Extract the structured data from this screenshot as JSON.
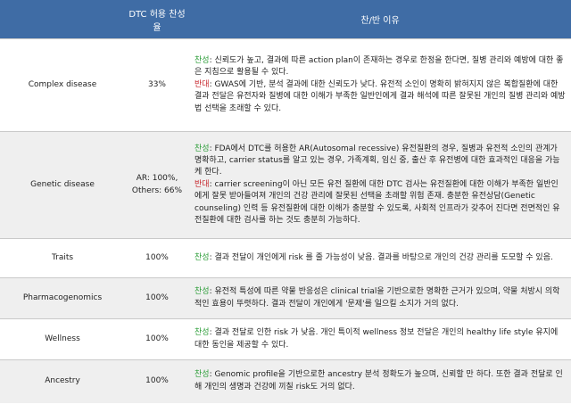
{
  "header": {
    "col1": "",
    "col2": "DTC 허용 찬성율",
    "col3": "찬/반 이유"
  },
  "rows": [
    {
      "name": "Complex disease",
      "rate": "33%",
      "pro_label": "찬성",
      "pro_text": ": 신뢰도가 높고, 결과에 따른 action plan이 존재하는 경우로 한정을 한다면, 질병 관리와 예방에 대한 좋은 지침으로 활용될 수 있다.",
      "con_label": "반대",
      "con_text": ": GWAS에 기반, 분석 결과에 대한 신뢰도가 낮다. 유전적 소인이 명확히 밝혀지지 않은 복합질환에 대한 결과 전달은 유전자와 질병에 대한 이해가 부족한 일반인에게 결과 해석에 따른 잘못된 개인의 질병 관리와 예방법 선택을 초래할 수 있다."
    },
    {
      "name": "Genetic disease",
      "rate_line1": "AR: 100%,",
      "rate_line2": "Others: 66%",
      "pro_label": "찬성",
      "pro_text": ": FDA에서 DTC를 허용한 AR(Autosomal recessive) 유전질환의 경우, 질병과 유전적 소인의 관계가 명확하고, carrier status를 알고 있는 경우, 가족계획, 임신 중, 출산 후 유전병에 대한 효과적인 대응을 가능케 한다.",
      "con_label": "반대",
      "con_text": ": carrier screening이 아닌 모든 유전 질환에 대한 DTC 검사는 유전질환에 대한 이해가 부족한 일반인에게 잘못 받아들여져 개인의 건강 관리에 잘못된 선택을 초래할 위험 존재. 충분한 유전상담(Genetic counseling) 인력 등 유전질환에 대한 이해가 충분할 수 있도록, 사회적 인프라가 갖추어 진다면 전면적인 유전질환에 대한 검사를 하는 것도 충분히 가능하다."
    },
    {
      "name": "Traits",
      "rate": "100%",
      "pro_label": "찬성",
      "pro_text": ": 결과 전달이 개인에게 risk 를 줄 가능성이 낮음. 결과를 바탕으로 개인의 건강 관리를 도모할 수 있음."
    },
    {
      "name": "Pharmacogenomics",
      "rate": "100%",
      "pro_label": "찬성",
      "pro_text": ": 유전적 특성에 따른 약물 반응성은 clinical trial을 기반으로한 명확한 근거가 있으며, 약물 처방시 의학적인 효용이 뚜렷하다. 결과 전달이 개인에게 '문제'를 일으킬 소지가 거의 없다."
    },
    {
      "name": "Wellness",
      "rate": "100%",
      "pro_label": "찬성",
      "pro_text": ": 결과 전달로 인한 risk 가 낮음. 개인 특이적 wellness 정보 전달은 개인의 healthy life style 유지에 대한 동인을 제공할 수 있다."
    },
    {
      "name": "Ancestry",
      "rate": "100%",
      "pro_label": "찬성",
      "pro_text": ": Genomic profile을 기반으로한 ancestry 분석 정확도가 높으며, 신뢰할 만 하다. 또한 결과 전달로 인해 개인의 생명과 건강에 끼칠 risk도 거의 없다."
    }
  ]
}
